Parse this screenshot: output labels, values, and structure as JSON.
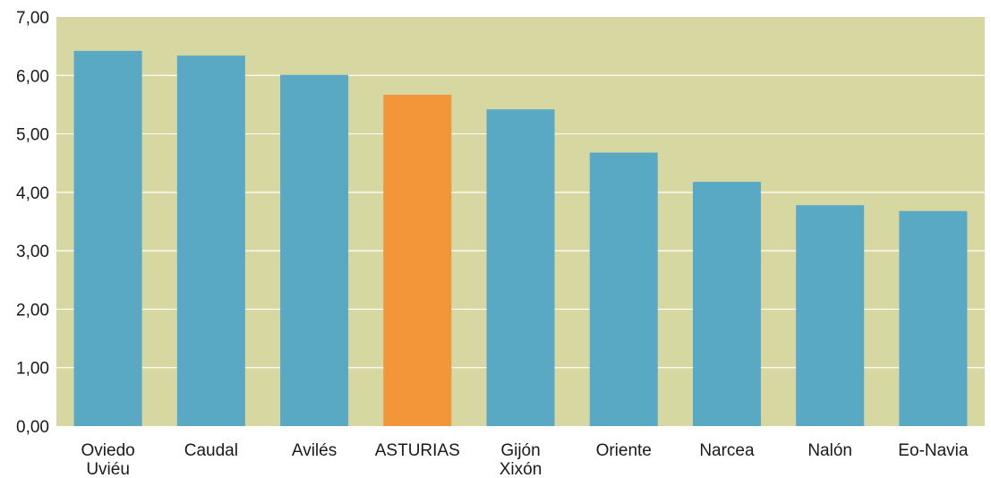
{
  "chart_data": {
    "type": "bar",
    "title": "",
    "xlabel": "",
    "ylabel": "",
    "ylim": [
      0,
      7
    ],
    "grid": true,
    "y_ticks": [
      "0,00",
      "1,00",
      "2,00",
      "3,00",
      "4,00",
      "5,00",
      "6,00",
      "7,00"
    ],
    "categories": [
      [
        "Oviedo",
        "Uviéu"
      ],
      [
        "Caudal"
      ],
      [
        "Avilés"
      ],
      [
        "ASTURIAS"
      ],
      [
        "Gijón",
        "Xixón"
      ],
      [
        "Oriente"
      ],
      [
        "Narcea"
      ],
      [
        "Nalón"
      ],
      [
        "Eo-Navia"
      ]
    ],
    "values": [
      6.42,
      6.34,
      6.01,
      5.67,
      5.42,
      4.68,
      4.18,
      3.78,
      3.68
    ],
    "highlight_index": 3,
    "colors": {
      "plot_background": "#d6d7a1",
      "bar": "#59a9c5",
      "highlight_bar": "#f39539",
      "gridline": "#ffffff",
      "text": "#1a1a1a"
    }
  }
}
